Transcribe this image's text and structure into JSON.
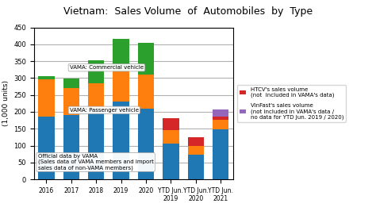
{
  "chart_data": {
    "type": "bar",
    "stacked": true,
    "title": "Vietnam:  Sales Volume  of  Automobiles  by  Type",
    "y_label": "(1,000 units)",
    "categories": [
      "2016",
      "2017",
      "2018",
      "2019",
      "2020",
      "YTD Jun.\n2019",
      "YTD Jun.\n2020",
      "YTD Jun.\n2021"
    ],
    "series": [
      {
        "values": [
          185,
          190,
          210,
          230,
          210,
          105,
          72,
          148
        ]
      },
      {
        "values": [
          112,
          80,
          75,
          90,
          100,
          42,
          28,
          28
        ]
      },
      {
        "values": [
          8,
          28,
          68,
          95,
          95,
          null,
          null,
          null
        ]
      },
      {
        "name": "HTCV's sales volume\n(not  included in VAMA's data)",
        "values": [
          null,
          null,
          null,
          null,
          null,
          35,
          25,
          10
        ]
      },
      {
        "name": "VinFast's sales volume\n(not included in VAMA's data /\nno data for YTD Jun. 2019 / 2020)",
        "values": [
          null,
          null,
          null,
          null,
          null,
          0,
          0,
          22
        ]
      }
    ],
    "ylim": [
      0,
      450
    ],
    "yticks": [
      0,
      50,
      100,
      150,
      200,
      250,
      300,
      350,
      400,
      450
    ],
    "grid": true,
    "legend": "center left",
    "annotations": [
      "VAMA: Commercial vehicle",
      "VAMA: Passenger vehicle",
      "Official data by VAMA\n(Sales data of VAMA members and import\nsales data of non-VAMA members)"
    ]
  }
}
